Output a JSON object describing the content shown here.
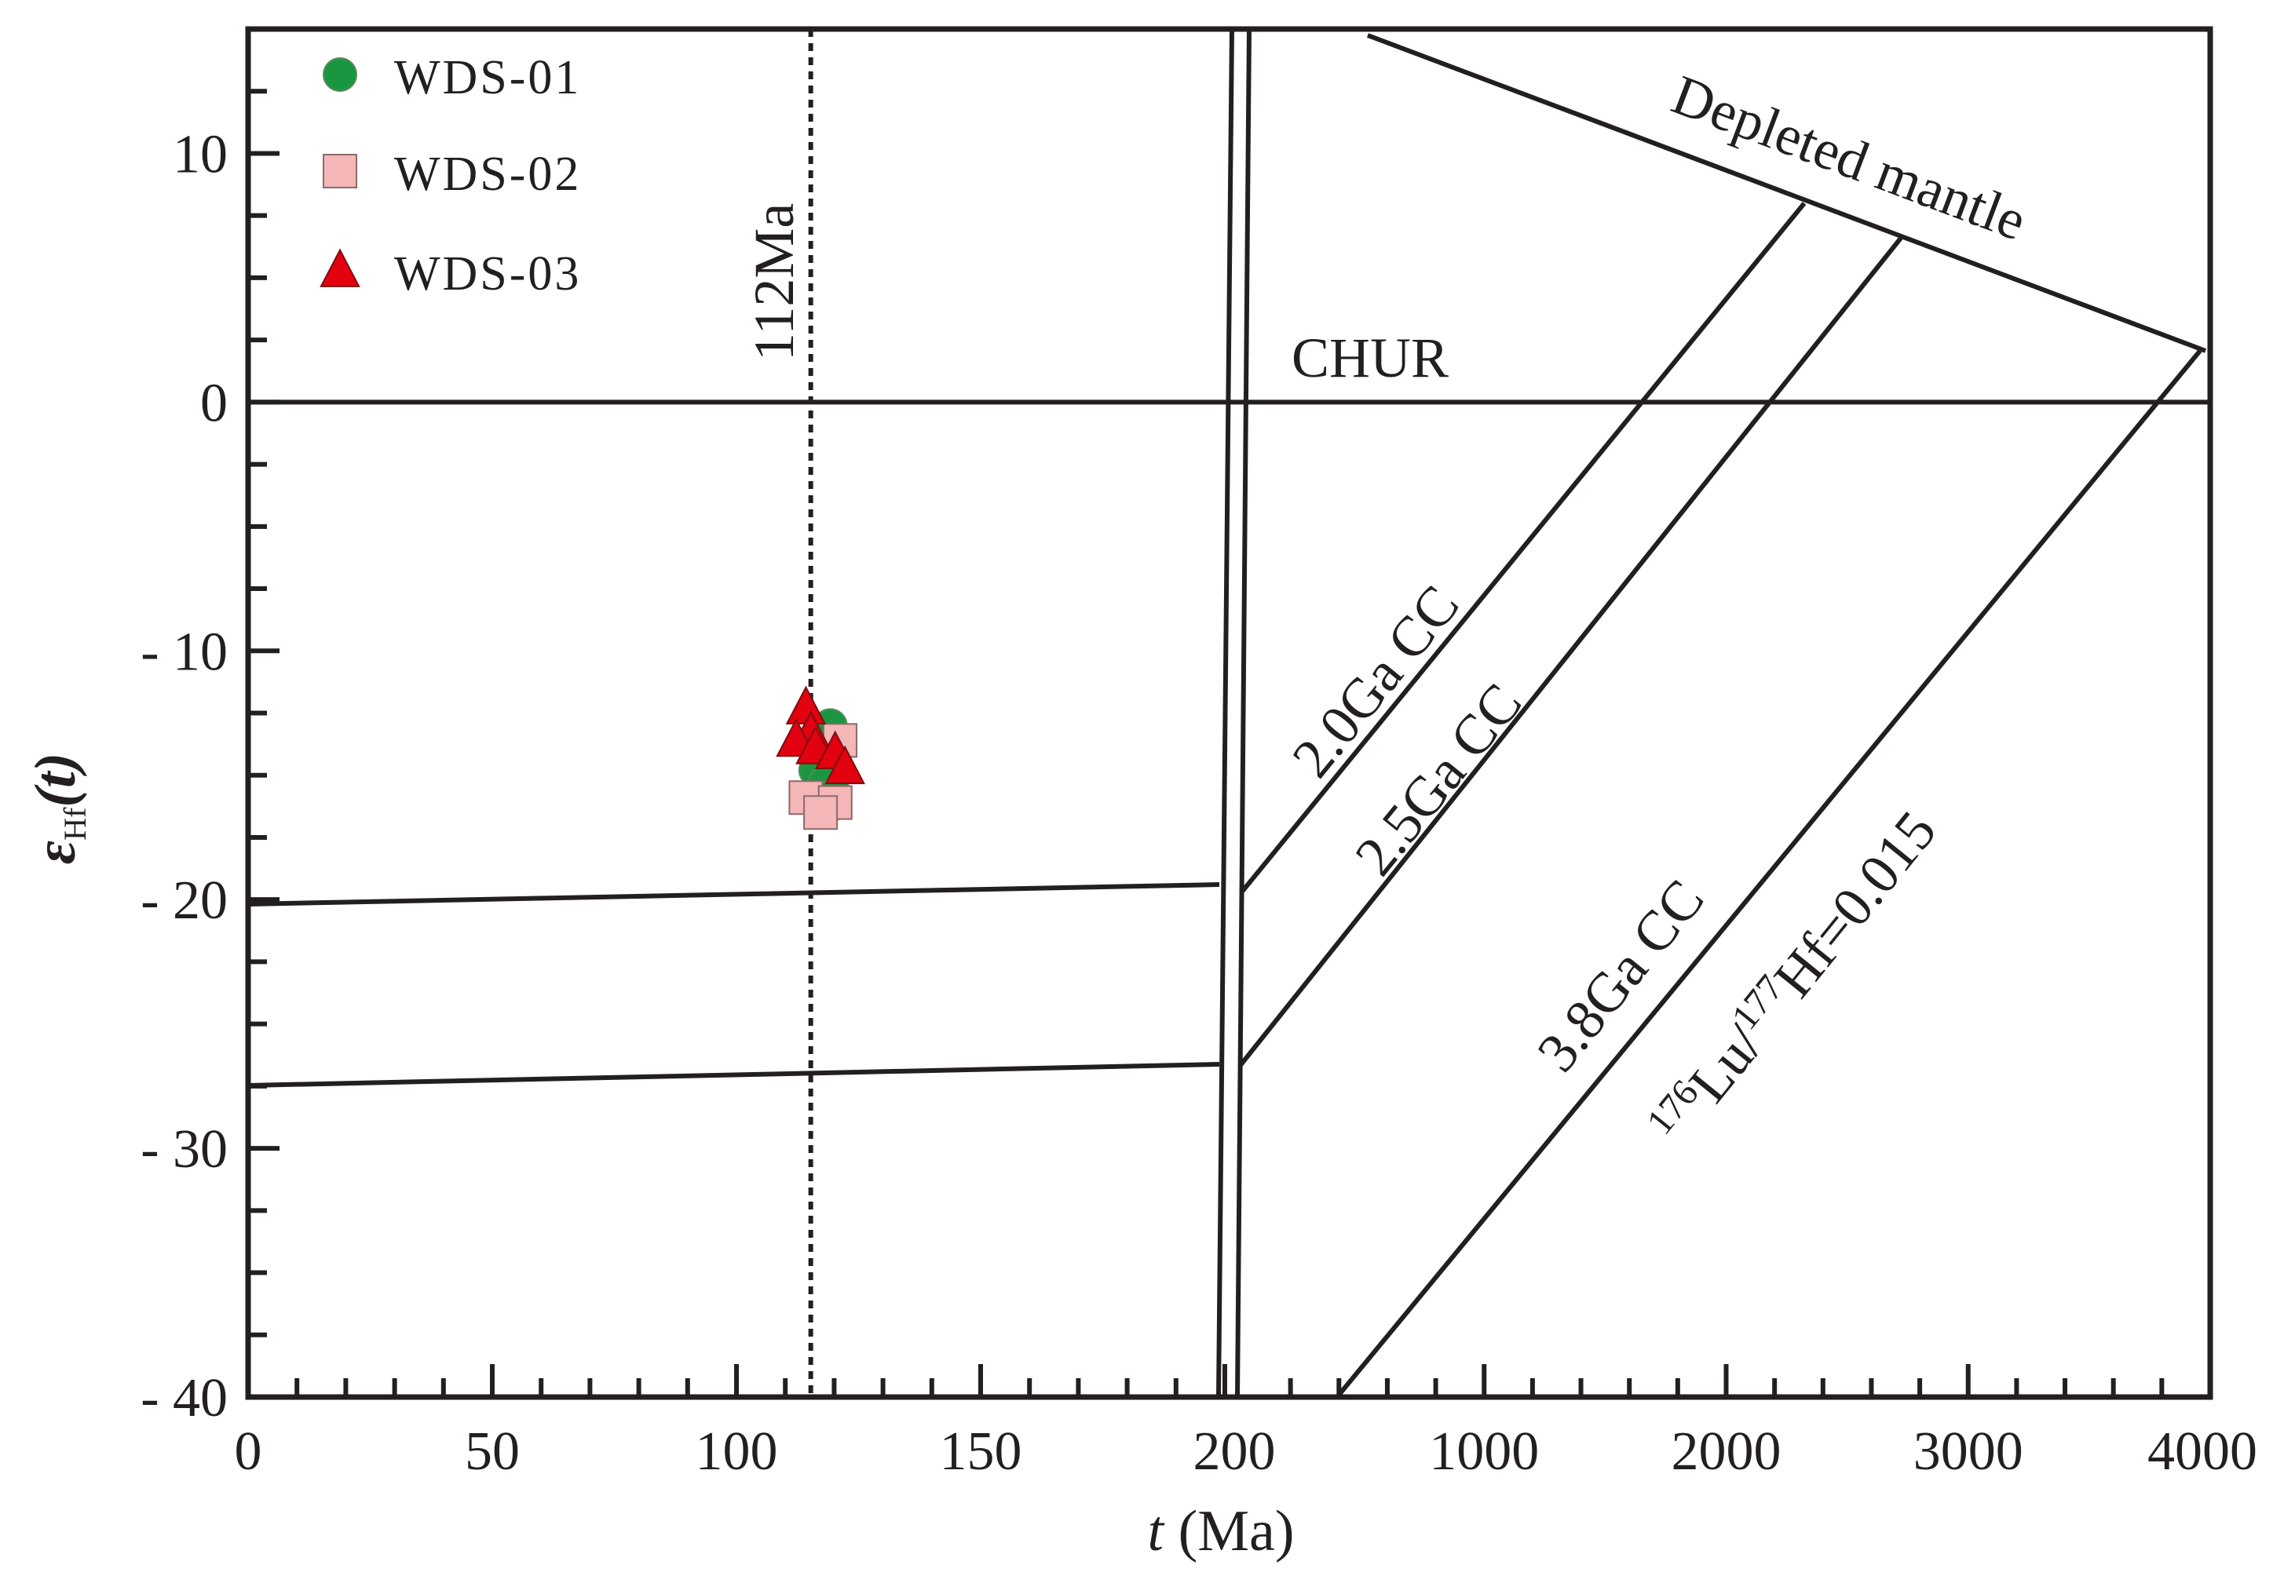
{
  "chart_data": {
    "type": "scatter",
    "xlabel_italic": "t",
    "xlabel_rest": " (Ma)",
    "ylabel_symbol": "ε",
    "ylabel_sub": "Hf",
    "ylabel_arg": "(t)",
    "ylim": [
      -40,
      15
    ],
    "xaxis": {
      "segment1": {
        "range": [
          0,
          200
        ],
        "ticks": [
          "0",
          "50",
          "100",
          "150",
          "200"
        ]
      },
      "segment2": {
        "range": [
          0,
          4000
        ],
        "ticks": [
          "1000",
          "2000",
          "3000",
          "4000"
        ]
      }
    },
    "yticks": [
      {
        "value": 10,
        "label": "10"
      },
      {
        "value": 0,
        "label": "0"
      },
      {
        "value": -10,
        "label": "- 10"
      },
      {
        "value": -20,
        "label": "- 20"
      },
      {
        "value": -30,
        "label": "- 30"
      },
      {
        "value": -40,
        "label": "- 40"
      }
    ],
    "legend_position": "top-left",
    "series": [
      {
        "name": "WDS-01",
        "marker": "circle",
        "color": "#1a9641",
        "points": [
          [
            116,
            -13.0
          ],
          [
            118,
            -13.8
          ],
          [
            113,
            -14.8
          ],
          [
            115,
            -15.3
          ],
          [
            117,
            -15.8
          ],
          [
            116,
            -16.2
          ]
        ]
      },
      {
        "name": "WDS-02",
        "marker": "square",
        "color": "#f4b6b6",
        "points": [
          [
            118,
            -13.6
          ],
          [
            111,
            -15.9
          ],
          [
            117,
            -16.1
          ],
          [
            114,
            -16.5
          ]
        ]
      },
      {
        "name": "WDS-03",
        "marker": "triangle",
        "color": "#e3000f",
        "points": [
          [
            111,
            -12.3
          ],
          [
            112,
            -13.3
          ],
          [
            109,
            -13.6
          ],
          [
            113,
            -13.9
          ],
          [
            117,
            -14.1
          ],
          [
            119,
            -14.7
          ]
        ]
      }
    ],
    "reference_lines": {
      "age_marker": {
        "label": "112Ma",
        "x": 112
      },
      "chur": {
        "label": "CHUR"
      },
      "depleted_mantle": {
        "label": "Depleted mantle"
      },
      "cc_20": {
        "label": "2.0Ga CC"
      },
      "cc_25": {
        "label": "2.5Ga CC"
      },
      "cc_38": {
        "label": "3.8Ga CC"
      },
      "lu_hf": {
        "sup1": "176",
        "el1": "Lu/",
        "sup2": "177",
        "el2": "Hf=0.015"
      }
    }
  }
}
